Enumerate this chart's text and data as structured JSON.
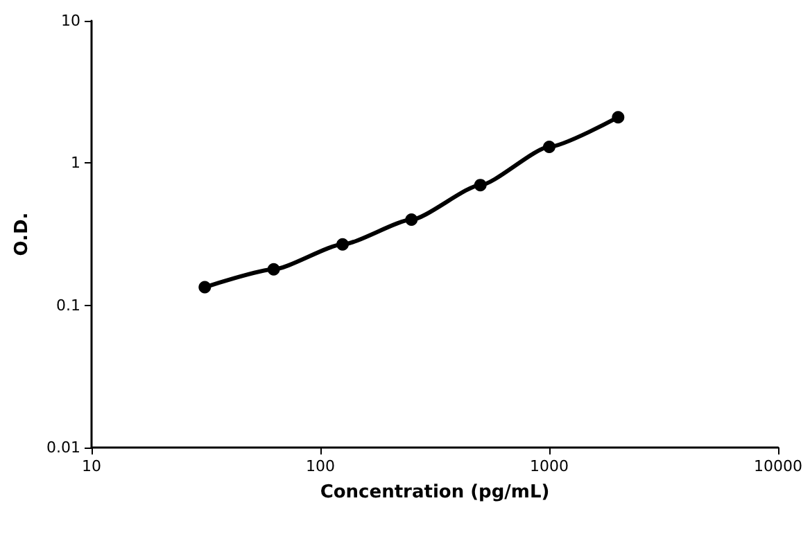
{
  "chart_data": {
    "type": "line",
    "xlabel": "Concentration (pg/mL)",
    "ylabel": "O.D.",
    "x": [
      31.25,
      62.5,
      125,
      250,
      500,
      1000,
      2000
    ],
    "series": [
      {
        "color": "#000000",
        "values": [
          0.134,
          0.179,
          0.268,
          0.4,
          0.7,
          1.3,
          2.1
        ]
      }
    ],
    "log": "xy",
    "xlim": [
      10,
      10000
    ],
    "ylim": [
      0.01,
      10
    ],
    "xticks": [
      10,
      100,
      1000,
      10000
    ],
    "yticks": [
      0.01,
      0.1,
      1,
      10
    ],
    "grid": false,
    "marker": "circle",
    "line_style": "solid"
  }
}
